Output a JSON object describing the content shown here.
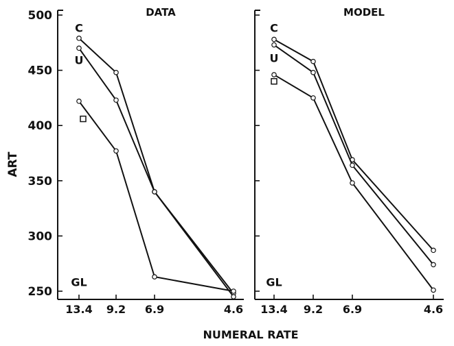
{
  "chart_data": [
    {
      "type": "line",
      "title": "DATA",
      "xlabel": "NUMERAL RATE",
      "ylabel": "ART",
      "x_ticks": [
        "13.4",
        "9.2",
        "6.9",
        "4.6"
      ],
      "y_ticks": [
        "500",
        "450",
        "400",
        "350",
        "300",
        "250"
      ],
      "ylim": [
        245,
        500
      ],
      "series": [
        {
          "name": "C",
          "x": [
            "13.4",
            "9.2",
            "6.9",
            "4.6"
          ],
          "y": [
            479,
            448,
            340,
            248
          ]
        },
        {
          "name": "U",
          "x": [
            "13.4",
            "9.2",
            "6.9",
            "4.6"
          ],
          "y": [
            470,
            423,
            340,
            245
          ]
        },
        {
          "x": [
            "13.4",
            "9.2",
            "6.9",
            "4.6"
          ],
          "y": [
            422,
            377,
            263,
            250
          ]
        }
      ],
      "annotations": [
        {
          "text": "C",
          "x": "13.4",
          "y": 489
        },
        {
          "text": "U",
          "x": "13.4",
          "y": 460
        },
        {
          "text": "GL",
          "x": "13.4",
          "y": 259
        },
        {
          "marker": "square",
          "x": "13.4",
          "y": 406
        }
      ]
    },
    {
      "type": "line",
      "title": "MODEL",
      "xlabel": "NUMERAL RATE",
      "x_ticks": [
        "13.4",
        "9.2",
        "6.9",
        "4.6"
      ],
      "ylim": [
        245,
        500
      ],
      "series": [
        {
          "name": "C",
          "x": [
            "13.4",
            "9.2",
            "6.9",
            "4.6"
          ],
          "y": [
            478,
            458,
            369,
            287
          ]
        },
        {
          "name": "U",
          "x": [
            "13.4",
            "9.2",
            "6.9",
            "4.6"
          ],
          "y": [
            473,
            448,
            364,
            274
          ]
        },
        {
          "x": [
            "13.4",
            "9.2",
            "6.9",
            "4.6"
          ],
          "y": [
            446,
            425,
            348,
            251
          ]
        }
      ],
      "annotations": [
        {
          "text": "C",
          "x": "13.4",
          "y": 489
        },
        {
          "text": "U",
          "x": "13.4",
          "y": 462
        },
        {
          "text": "GL",
          "x": "13.4",
          "y": 259
        },
        {
          "marker": "square",
          "x": "13.4",
          "y": 440
        }
      ]
    }
  ]
}
